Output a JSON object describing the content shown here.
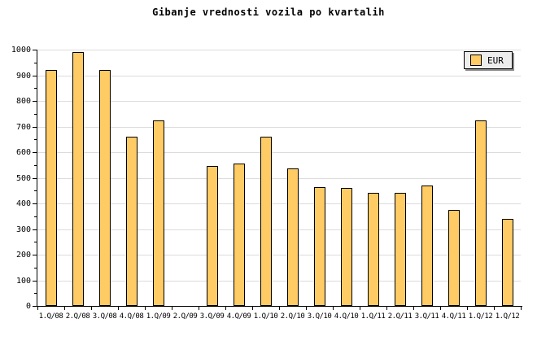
{
  "title": "Gibanje vrednosti vozila po kvartalih",
  "legend": {
    "label": "EUR",
    "swatch_color": "#FFCB64"
  },
  "colors": {
    "bar_fill": "#FFCB64",
    "bar_border": "#000000",
    "gridline": "#DCDCDC",
    "axis": "#000000",
    "legend_background": "#EDEDED",
    "legend_shadow": "#8A8A8A",
    "background": "#FFFFFF"
  },
  "chart_data": {
    "type": "bar",
    "title": "Gibanje vrednosti vozila po kvartalih",
    "categories": [
      "1.Q/08",
      "2.Q/08",
      "3.Q/08",
      "4.Q/08",
      "1.Q/09",
      "2.Q/09",
      "3.Q/09",
      "4.Q/09",
      "1.Q/10",
      "2.Q/10",
      "3.Q/10",
      "4.Q/10",
      "1.Q/11",
      "2.Q/11",
      "3.Q/11",
      "4.Q/11",
      "1.Q/12",
      "1.Q/12"
    ],
    "series": [
      {
        "name": "EUR",
        "values": [
          920,
          990,
          920,
          660,
          725,
          null,
          545,
          555,
          660,
          535,
          465,
          460,
          440,
          440,
          470,
          375,
          725,
          340
        ]
      }
    ],
    "xlabel": "",
    "ylabel": "",
    "ylim": [
      0,
      1000
    ],
    "ytick_step": 100,
    "ytick_minor_step": 50,
    "ytick_labels": [
      "0",
      "100",
      "200",
      "300",
      "400",
      "500",
      "600",
      "700",
      "800",
      "900",
      "1000"
    ],
    "grid": true,
    "legend_position": "top-right",
    "note": "no bar rendered for 2.Q/09"
  }
}
